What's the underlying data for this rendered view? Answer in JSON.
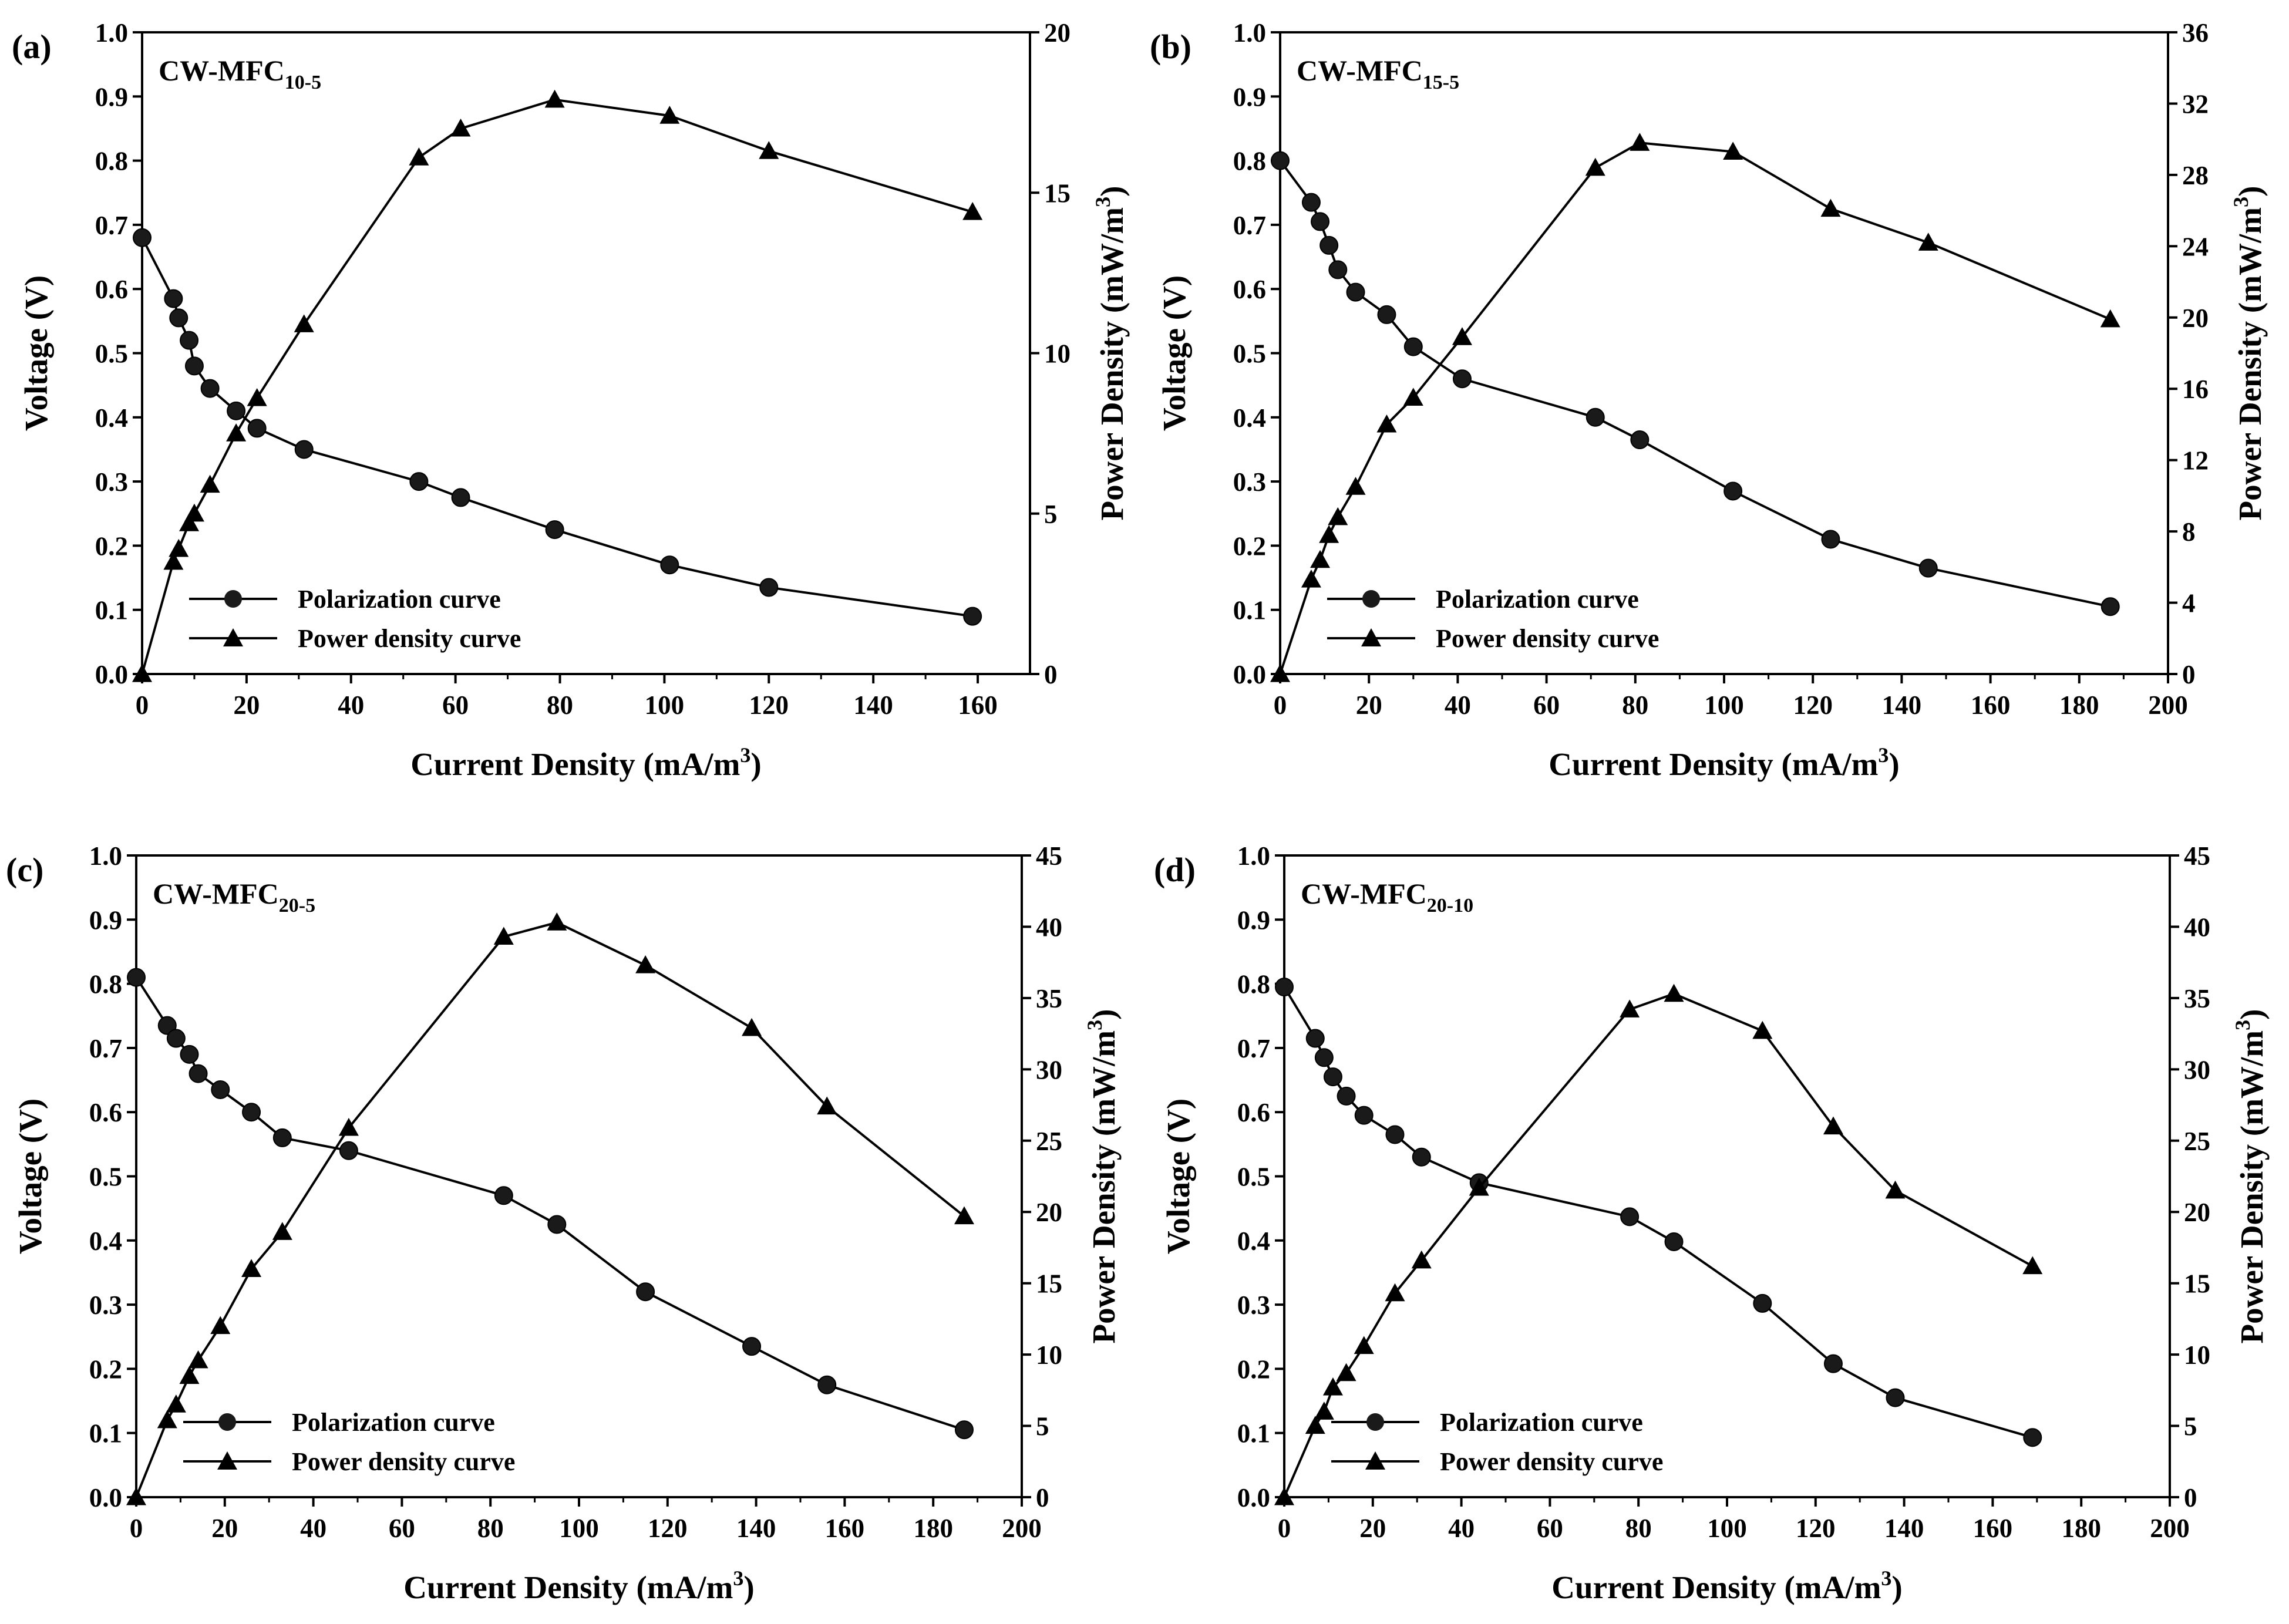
{
  "figure": {
    "x_axis_title": "Current Density (mA/m",
    "y_left_title": "Voltage (V)",
    "y_right_title": "Power Density (mW/m",
    "unit_superscript": "3",
    "legend": {
      "polarization": "Polarization curve",
      "power": "Power density curve"
    }
  },
  "chart_data": [
    {
      "type": "line",
      "panel_label": "(a)",
      "title": "CW-MFC",
      "title_subscript": "10-5",
      "xlabel": "Current Density (mA/m3)",
      "ylabel_left": "Voltage (V)",
      "ylabel_right": "Power Density (mW/m3)",
      "xlim": [
        0,
        170
      ],
      "xticks": [
        0,
        20,
        40,
        60,
        80,
        100,
        120,
        140,
        160
      ],
      "ylim_left": [
        0,
        1.0
      ],
      "yticks_left": [
        "0.0",
        "0.1",
        "0.2",
        "0.3",
        "0.4",
        "0.5",
        "0.6",
        "0.7",
        "0.8",
        "0.9",
        "1.0"
      ],
      "ylim_right": [
        0,
        20
      ],
      "yticks_right": [
        "0",
        "5",
        "10",
        "15",
        "20"
      ],
      "series": [
        {
          "name": "Polarization curve",
          "axis": "left",
          "marker": "circle",
          "x": [
            0,
            6,
            7,
            9,
            10,
            13,
            18,
            22,
            31,
            53,
            61,
            79,
            101,
            120,
            159
          ],
          "y": [
            0.68,
            0.585,
            0.555,
            0.52,
            0.48,
            0.445,
            0.41,
            0.383,
            0.35,
            0.3,
            0.275,
            0.225,
            0.17,
            0.135,
            0.09
          ]
        },
        {
          "name": "Power density curve",
          "axis": "right",
          "marker": "triangle",
          "x": [
            0,
            6,
            7,
            9,
            10,
            13,
            18,
            22,
            31,
            53,
            61,
            79,
            101,
            120,
            159
          ],
          "y": [
            0,
            3.5,
            3.9,
            4.7,
            5.0,
            5.9,
            7.5,
            8.6,
            10.9,
            16.1,
            17.0,
            17.9,
            17.4,
            16.3,
            14.4
          ]
        }
      ]
    },
    {
      "type": "line",
      "panel_label": "(b)",
      "title": "CW-MFC",
      "title_subscript": "15-5",
      "xlabel": "Current Density (mA/m3)",
      "ylabel_left": "Voltage (V)",
      "ylabel_right": "Power Density (mW/m3)",
      "xlim": [
        0,
        200
      ],
      "xticks": [
        0,
        20,
        40,
        60,
        80,
        100,
        120,
        140,
        160,
        180,
        200
      ],
      "ylim_left": [
        0,
        1.0
      ],
      "yticks_left": [
        "0.0",
        "0.1",
        "0.2",
        "0.3",
        "0.4",
        "0.5",
        "0.6",
        "0.7",
        "0.8",
        "0.9",
        "1.0"
      ],
      "ylim_right": [
        0,
        36
      ],
      "yticks_right": [
        "0",
        "4",
        "8",
        "12",
        "16",
        "20",
        "24",
        "28",
        "32",
        "36"
      ],
      "series": [
        {
          "name": "Polarization curve",
          "axis": "left",
          "marker": "circle",
          "x": [
            0,
            7,
            9,
            11,
            13,
            17,
            24,
            30,
            41,
            71,
            81,
            102,
            124,
            146,
            187
          ],
          "y": [
            0.8,
            0.735,
            0.705,
            0.668,
            0.63,
            0.595,
            0.56,
            0.51,
            0.46,
            0.4,
            0.365,
            0.285,
            0.21,
            0.165,
            0.105
          ]
        },
        {
          "name": "Power density curve",
          "axis": "right",
          "marker": "triangle",
          "x": [
            0,
            7,
            9,
            11,
            13,
            17,
            24,
            30,
            41,
            71,
            81,
            102,
            124,
            146,
            187
          ],
          "y": [
            0,
            5.3,
            6.4,
            7.8,
            8.8,
            10.5,
            14.0,
            15.5,
            18.9,
            28.4,
            29.8,
            29.3,
            26.1,
            24.2,
            19.9
          ]
        }
      ]
    },
    {
      "type": "line",
      "panel_label": "(c)",
      "title": "CW-MFC",
      "title_subscript": "20-5",
      "xlabel": "Current Density (mA/m3)",
      "ylabel_left": "Voltage (V)",
      "ylabel_right": "Power Density (mW/m3)",
      "xlim": [
        0,
        200
      ],
      "xticks": [
        0,
        20,
        40,
        60,
        80,
        100,
        120,
        140,
        160,
        180,
        200
      ],
      "ylim_left": [
        0,
        1.0
      ],
      "yticks_left": [
        "0.0",
        "0.1",
        "0.2",
        "0.3",
        "0.4",
        "0.5",
        "0.6",
        "0.7",
        "0.8",
        "0.9",
        "1.0"
      ],
      "ylim_right": [
        0,
        45
      ],
      "yticks_right": [
        "0",
        "5",
        "10",
        "15",
        "20",
        "25",
        "30",
        "35",
        "40",
        "45"
      ],
      "series": [
        {
          "name": "Polarization curve",
          "axis": "left",
          "marker": "circle",
          "x": [
            0,
            7,
            9,
            12,
            14,
            19,
            26,
            33,
            48,
            83,
            95,
            115,
            139,
            156,
            187
          ],
          "y": [
            0.81,
            0.735,
            0.715,
            0.69,
            0.66,
            0.635,
            0.6,
            0.56,
            0.54,
            0.47,
            0.425,
            0.32,
            0.235,
            0.175,
            0.105
          ]
        },
        {
          "name": "Power density curve",
          "axis": "right",
          "marker": "triangle",
          "x": [
            0,
            7,
            9,
            12,
            14,
            19,
            26,
            33,
            48,
            83,
            95,
            115,
            139,
            156,
            187
          ],
          "y": [
            0,
            5.4,
            6.5,
            8.5,
            9.6,
            12.0,
            16.0,
            18.6,
            25.9,
            39.3,
            40.3,
            37.3,
            32.9,
            27.4,
            19.7
          ]
        }
      ]
    },
    {
      "type": "line",
      "panel_label": "(d)",
      "title": "CW-MFC",
      "title_subscript": "20-10",
      "xlabel": "Current Density (mA/m3)",
      "ylabel_left": "Voltage (V)",
      "ylabel_right": "Power Density (mW/m3)",
      "xlim": [
        0,
        200
      ],
      "xticks": [
        0,
        20,
        40,
        60,
        80,
        100,
        120,
        140,
        160,
        180,
        200
      ],
      "ylim_left": [
        0,
        1.0
      ],
      "yticks_left": [
        "0.0",
        "0.1",
        "0.2",
        "0.3",
        "0.4",
        "0.5",
        "0.6",
        "0.7",
        "0.8",
        "0.9",
        "1.0"
      ],
      "ylim_right": [
        0,
        45
      ],
      "yticks_right": [
        "0",
        "5",
        "10",
        "15",
        "20",
        "25",
        "30",
        "35",
        "40",
        "45"
      ],
      "series": [
        {
          "name": "Polarization curve",
          "axis": "left",
          "marker": "circle",
          "x": [
            0,
            7,
            9,
            11,
            14,
            18,
            25,
            31,
            44,
            78,
            88,
            108,
            124,
            138,
            169
          ],
          "y": [
            0.795,
            0.715,
            0.685,
            0.655,
            0.625,
            0.595,
            0.565,
            0.53,
            0.49,
            0.437,
            0.398,
            0.302,
            0.208,
            0.155,
            0.093
          ]
        },
        {
          "name": "Power density curve",
          "axis": "right",
          "marker": "triangle",
          "x": [
            0,
            7,
            9,
            11,
            14,
            18,
            25,
            31,
            44,
            78,
            88,
            108,
            124,
            138,
            169
          ],
          "y": [
            0,
            5.0,
            6.0,
            7.7,
            8.7,
            10.6,
            14.3,
            16.6,
            21.7,
            34.2,
            35.3,
            32.7,
            26.0,
            21.5,
            16.2
          ]
        }
      ]
    }
  ]
}
